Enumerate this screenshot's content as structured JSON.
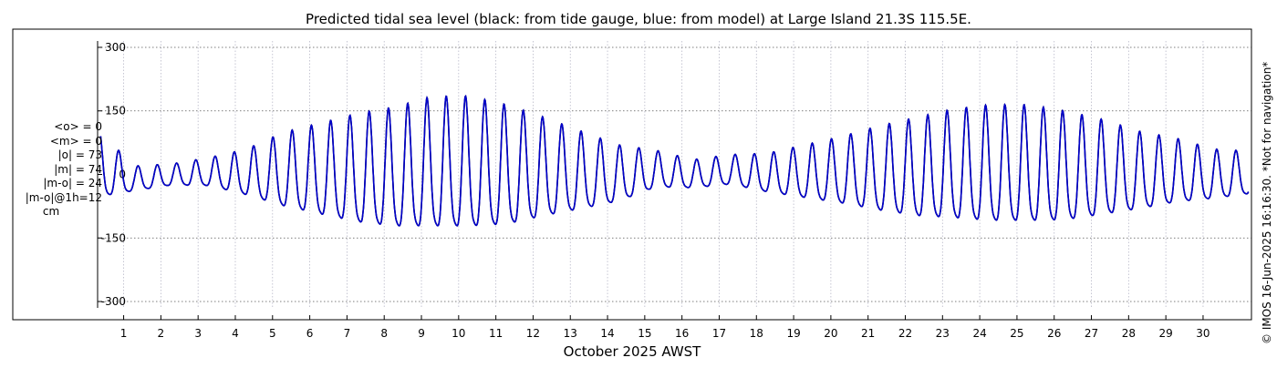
{
  "chart_data": {
    "type": "line",
    "title": "Predicted tidal sea level (black: from tide gauge, blue: from model) at Large Island 21.3S 115.5E.",
    "xlabel": "October 2025 AWST",
    "ylabel": "",
    "xlim": [
      0.3,
      31.3
    ],
    "ylim": [
      -315,
      315
    ],
    "x_ticks": [
      1,
      2,
      3,
      4,
      5,
      6,
      7,
      8,
      9,
      10,
      11,
      12,
      13,
      14,
      15,
      16,
      17,
      18,
      19,
      20,
      21,
      22,
      23,
      24,
      25,
      26,
      27,
      28,
      29,
      30
    ],
    "x_tick_labels": [
      "1",
      "2",
      "3",
      "4",
      "5",
      "6",
      "7",
      "8",
      "9",
      "10",
      "11",
      "12",
      "13",
      "14",
      "15",
      "16",
      "17",
      "18",
      "19",
      "20",
      "21",
      "22",
      "23",
      "24",
      "25",
      "26",
      "27",
      "28",
      "29",
      "30"
    ],
    "y_ticks": [
      300,
      150,
      0,
      -150,
      -300
    ],
    "y_tick_labels": [
      "300",
      "150",
      "0",
      "-150",
      "-300"
    ],
    "grid": true,
    "series": [
      {
        "color": "#000000",
        "envelope": [
          [
            0.3,
            95
          ],
          [
            1.3,
            35
          ],
          [
            2.3,
            30
          ],
          [
            3.3,
            40
          ],
          [
            4.3,
            65
          ],
          [
            5.3,
            105
          ],
          [
            6.3,
            130
          ],
          [
            7.3,
            155
          ],
          [
            8.3,
            170
          ],
          [
            9.3,
            185
          ],
          [
            10.3,
            185
          ],
          [
            11.3,
            170
          ],
          [
            12.3,
            140
          ],
          [
            13.3,
            110
          ],
          [
            14.3,
            80
          ],
          [
            15.3,
            52
          ],
          [
            16.3,
            40
          ],
          [
            17.3,
            42
          ],
          [
            18.3,
            55
          ],
          [
            19.3,
            75
          ],
          [
            20.3,
            95
          ],
          [
            21.3,
            120
          ],
          [
            22.3,
            140
          ],
          [
            23.3,
            155
          ],
          [
            24.3,
            165
          ],
          [
            25.3,
            165
          ],
          [
            26.3,
            155
          ],
          [
            27.3,
            135
          ],
          [
            28.3,
            110
          ],
          [
            29.3,
            90
          ],
          [
            30.3,
            70
          ],
          [
            31.3,
            60
          ]
        ],
        "mean_shift": [
          [
            0.3,
            10
          ],
          [
            1.3,
            -15
          ],
          [
            2.3,
            -5
          ],
          [
            3.3,
            0
          ],
          [
            4.3,
            -5
          ],
          [
            5.3,
            -5
          ],
          [
            6.3,
            -8
          ],
          [
            7.3,
            -10
          ],
          [
            8.3,
            -10
          ],
          [
            9.3,
            0
          ],
          [
            10.3,
            0
          ],
          [
            11.3,
            -5
          ],
          [
            12.3,
            -5
          ],
          [
            13.3,
            -8
          ],
          [
            14.3,
            -10
          ],
          [
            15.3,
            5
          ],
          [
            16.3,
            -5
          ],
          [
            17.3,
            5
          ],
          [
            18.3,
            -5
          ],
          [
            19.3,
            -5
          ],
          [
            20.3,
            -5
          ],
          [
            21.3,
            -5
          ],
          [
            22.3,
            -5
          ],
          [
            23.3,
            0
          ],
          [
            24.3,
            0
          ],
          [
            25.3,
            0
          ],
          [
            26.3,
            -5
          ],
          [
            27.3,
            -5
          ],
          [
            28.3,
            -8
          ],
          [
            29.3,
            -5
          ],
          [
            30.3,
            -10
          ],
          [
            31.3,
            -5
          ]
        ]
      },
      {
        "color": "#0000cc",
        "envelope": [
          [
            0.3,
            95
          ],
          [
            1.3,
            35
          ],
          [
            2.3,
            30
          ],
          [
            3.3,
            40
          ],
          [
            4.3,
            65
          ],
          [
            5.3,
            105
          ],
          [
            6.3,
            130
          ],
          [
            7.3,
            155
          ],
          [
            8.3,
            170
          ],
          [
            9.3,
            185
          ],
          [
            10.3,
            185
          ],
          [
            11.3,
            170
          ],
          [
            12.3,
            140
          ],
          [
            13.3,
            110
          ],
          [
            14.3,
            80
          ],
          [
            15.3,
            52
          ],
          [
            16.3,
            40
          ],
          [
            17.3,
            42
          ],
          [
            18.3,
            55
          ],
          [
            19.3,
            75
          ],
          [
            20.3,
            95
          ],
          [
            21.3,
            120
          ],
          [
            22.3,
            140
          ],
          [
            23.3,
            155
          ],
          [
            24.3,
            165
          ],
          [
            25.3,
            165
          ],
          [
            26.3,
            155
          ],
          [
            27.3,
            135
          ],
          [
            28.3,
            110
          ],
          [
            29.3,
            90
          ],
          [
            30.3,
            70
          ],
          [
            31.3,
            60
          ]
        ],
        "mean_shift": [
          [
            0.3,
            10
          ],
          [
            1.3,
            -15
          ],
          [
            2.3,
            -5
          ],
          [
            3.3,
            0
          ],
          [
            4.3,
            -5
          ],
          [
            5.3,
            -5
          ],
          [
            6.3,
            -8
          ],
          [
            7.3,
            -10
          ],
          [
            8.3,
            -10
          ],
          [
            9.3,
            0
          ],
          [
            10.3,
            0
          ],
          [
            11.3,
            -5
          ],
          [
            12.3,
            -5
          ],
          [
            13.3,
            -8
          ],
          [
            14.3,
            -10
          ],
          [
            15.3,
            5
          ],
          [
            16.3,
            -5
          ],
          [
            17.3,
            5
          ],
          [
            18.3,
            -5
          ],
          [
            19.3,
            -5
          ],
          [
            20.3,
            -5
          ],
          [
            21.3,
            -5
          ],
          [
            22.3,
            -5
          ],
          [
            23.3,
            0
          ],
          [
            24.3,
            0
          ],
          [
            25.3,
            0
          ],
          [
            26.3,
            -5
          ],
          [
            27.3,
            -5
          ],
          [
            28.3,
            -8
          ],
          [
            29.3,
            -5
          ],
          [
            30.3,
            -10
          ],
          [
            31.3,
            -5
          ]
        ]
      }
    ],
    "stats": [
      "<o> = 0",
      "<m> = 0",
      "|o| = 73",
      "|m| = 74",
      "|m-o| = 24",
      "|m-o|@1h=12",
      "cm"
    ],
    "side_note": "© IMOS 16-Jun-2025 16:16:30. *Not for navigation*"
  }
}
